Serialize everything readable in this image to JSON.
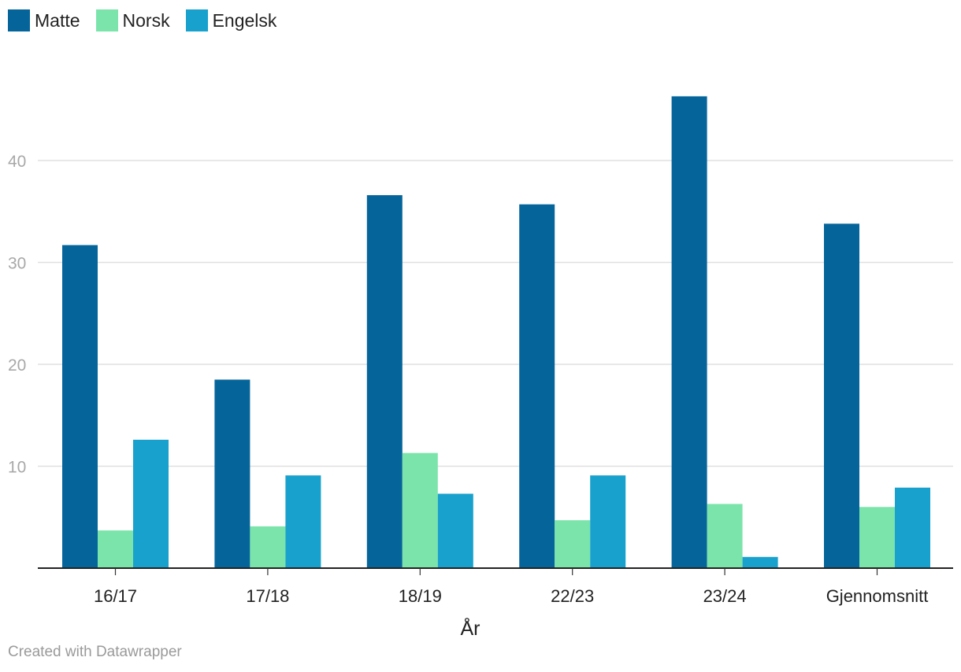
{
  "legend": {
    "items": [
      {
        "label": "Matte",
        "color": "#05659b"
      },
      {
        "label": "Norsk",
        "color": "#7be4ab"
      },
      {
        "label": "Engelsk",
        "color": "#18a1cd"
      }
    ]
  },
  "credit": "Created with Datawrapper",
  "chart_data": {
    "type": "bar",
    "categories": [
      "16/17",
      "17/18",
      "18/19",
      "22/23",
      "23/24",
      "Gjennomsnitt"
    ],
    "series": [
      {
        "name": "Matte",
        "color": "#05659b",
        "values": [
          31.7,
          18.5,
          36.6,
          35.7,
          46.3,
          33.8
        ]
      },
      {
        "name": "Norsk",
        "color": "#7be4ab",
        "values": [
          3.7,
          4.1,
          11.3,
          4.7,
          6.3,
          6.0
        ]
      },
      {
        "name": "Engelsk",
        "color": "#18a1cd",
        "values": [
          12.6,
          9.1,
          7.3,
          9.1,
          1.1,
          7.9
        ]
      }
    ],
    "xlabel": "År",
    "ylabel": "",
    "yticks": [
      10,
      20,
      30,
      40
    ],
    "ylim": [
      0,
      48
    ],
    "grid": true,
    "legend_position": "top-left"
  }
}
